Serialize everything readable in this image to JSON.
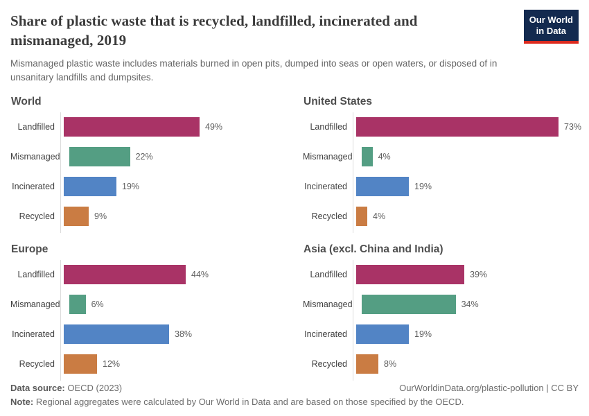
{
  "header": {
    "title": "Share of plastic waste that is recycled, landfilled, incinerated and mismanaged, 2019",
    "subtitle": "Mismanaged plastic waste includes materials burned in open pits, dumped into seas or open waters, or disposed of in unsanitary landfills and dumpsites.",
    "logo": {
      "line1": "Our World",
      "line2": "in Data"
    }
  },
  "colors": {
    "Landfilled": "#A93366",
    "Mismanaged": "#549E83",
    "Incinerated": "#5284C5",
    "Recycled": "#CA7C43",
    "logo_bg": "#132A4F",
    "logo_accent": "#DC2A1E",
    "axis_line": "#DCDCDC"
  },
  "value_suffix": "%",
  "chart_data": [
    {
      "type": "bar",
      "title": "World",
      "categories": [
        "Landfilled",
        "Mismanaged",
        "Incinerated",
        "Recycled"
      ],
      "values": [
        49,
        22,
        19,
        9
      ],
      "value_labels": [
        "49%",
        "22%",
        "19%",
        "9%"
      ],
      "xlim": [
        0,
        80
      ],
      "orientation": "horizontal",
      "grid": false,
      "legend": false
    },
    {
      "type": "bar",
      "title": "United States",
      "categories": [
        "Landfilled",
        "Mismanaged",
        "Incinerated",
        "Recycled"
      ],
      "values": [
        73,
        4,
        19,
        4
      ],
      "value_labels": [
        "73%",
        "4%",
        "19%",
        "4%"
      ],
      "xlim": [
        0,
        80
      ],
      "orientation": "horizontal",
      "grid": false,
      "legend": false
    },
    {
      "type": "bar",
      "title": "Europe",
      "categories": [
        "Landfilled",
        "Mismanaged",
        "Incinerated",
        "Recycled"
      ],
      "values": [
        44,
        6,
        38,
        12
      ],
      "value_labels": [
        "44%",
        "6%",
        "38%",
        "12%"
      ],
      "xlim": [
        0,
        80
      ],
      "orientation": "horizontal",
      "grid": false,
      "legend": false
    },
    {
      "type": "bar",
      "title": "Asia (excl. China and India)",
      "categories": [
        "Landfilled",
        "Mismanaged",
        "Incinerated",
        "Recycled"
      ],
      "values": [
        39,
        34,
        19,
        8
      ],
      "value_labels": [
        "39%",
        "34%",
        "19%",
        "8%"
      ],
      "xlim": [
        0,
        80
      ],
      "orientation": "horizontal",
      "grid": false,
      "legend": false
    }
  ],
  "footer": {
    "source_label": "Data source:",
    "source_value": " OECD (2023)",
    "rights": "OurWorldinData.org/plastic-pollution | CC BY",
    "note_label": "Note:",
    "note_value": " Regional aggregates were calculated by Our World in Data and are based on those specified by the OECD."
  }
}
